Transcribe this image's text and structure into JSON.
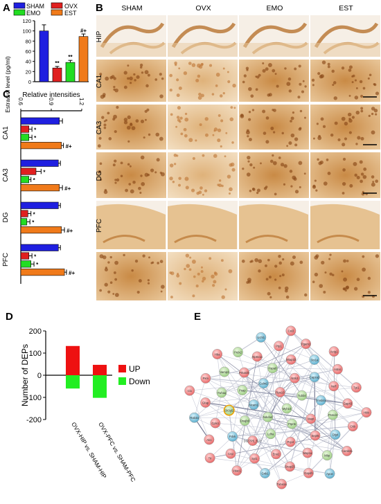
{
  "panel_labels": {
    "A": "A",
    "B": "B",
    "C": "C",
    "D": "D",
    "E": "E"
  },
  "colors": {
    "SHAM": "#1f1fe0",
    "OVX": "#e02020",
    "EMO": "#22dd22",
    "EST": "#f07a1a",
    "UP": "#ee1111",
    "Down": "#22ee22"
  },
  "legend_a": [
    {
      "label": "SHAM",
      "color": "#1f1fe0"
    },
    {
      "label": "OVX",
      "color": "#e02020"
    },
    {
      "label": "EMO",
      "color": "#22dd22"
    },
    {
      "label": "EST",
      "color": "#f07a1a"
    }
  ],
  "panel_b": {
    "columns": [
      "SHAM",
      "OVX",
      "EMO",
      "EST"
    ],
    "rows": [
      "HIP",
      "CA1",
      "CA3",
      "DG",
      "PFC",
      ""
    ]
  },
  "chart_data": [
    {
      "type": "bar",
      "panel": "A",
      "ylabel": "Estradiol level (pg/ml)",
      "ylim": [
        0,
        120
      ],
      "yticks": [
        "0",
        "20",
        "40",
        "60",
        "80",
        "100",
        "120"
      ],
      "categories": [
        "SHAM",
        "OVX",
        "EMO",
        "EST"
      ],
      "values": [
        100,
        27,
        38,
        89
      ],
      "errors": [
        12,
        3,
        4,
        5
      ],
      "annotations": [
        "",
        "**",
        "**",
        "#+"
      ]
    },
    {
      "type": "bar",
      "panel": "C",
      "orientation": "horizontal",
      "title": "Relative intensities",
      "xlim": [
        0.6,
        1.2
      ],
      "xticks": [
        "0.6",
        "0.9",
        "1.2"
      ],
      "groups": [
        {
          "name": "CA1",
          "values": [
            0.98,
            0.68,
            0.68,
            1.0
          ],
          "errors": [
            0.03,
            0.03,
            0.03,
            0.02
          ],
          "annotations": [
            "",
            "*",
            "*",
            "#+"
          ]
        },
        {
          "name": "CA3",
          "values": [
            0.97,
            0.75,
            0.68,
            0.98
          ],
          "errors": [
            0.02,
            0.05,
            0.02,
            0.03
          ],
          "annotations": [
            "",
            "*",
            "*",
            "#+"
          ]
        },
        {
          "name": "DG",
          "values": [
            0.97,
            0.67,
            0.66,
            1.0
          ],
          "errors": [
            0.02,
            0.03,
            0.03,
            0.03
          ],
          "annotations": [
            "",
            "*",
            "*",
            "#+"
          ]
        },
        {
          "name": "PFC",
          "values": [
            0.97,
            0.68,
            0.7,
            1.03
          ],
          "errors": [
            0.02,
            0.03,
            0.03,
            0.02
          ],
          "annotations": [
            "",
            "*",
            "*",
            "#+"
          ]
        }
      ]
    },
    {
      "type": "bar",
      "panel": "D",
      "ylabel": "Number of DEPs",
      "ylim": [
        -200,
        200
      ],
      "yticks": [
        "-200",
        "-100",
        "0",
        "100",
        "200"
      ],
      "categories": [
        "OVX-HIP vs. SHAM-HIP",
        "OVX-PFC vs. SHAM-PFC"
      ],
      "series": [
        {
          "name": "UP",
          "values": [
            132,
            47
          ]
        },
        {
          "name": "Down",
          "values": [
            -60,
            -102
          ]
        }
      ]
    }
  ],
  "network": {
    "labels": [
      "Myh10",
      "Ndufa4",
      "Rps10",
      "Ptpn5",
      "Ncam1",
      "Tubb4",
      "Ldha",
      "Calm2",
      "Mapt",
      "Dnajb6",
      "Ntrk3",
      "Pcp4",
      "Psap",
      "Tmsb4x",
      "D3Z7P5_RAT",
      "Hspa8",
      "Sept5",
      "Sh3gl2",
      "Capza2",
      "Eno2",
      "Prkar2b",
      "Psmd4",
      "Pdxk",
      "Mtap1b",
      "Map1a",
      "Ywhaq",
      "Nefl",
      "Syt1",
      "Atp6v1a",
      "Dlg4",
      "Cplx1",
      "Stx1a",
      "Snap25",
      "Vamp2",
      "Gap43",
      "Cnp",
      "Plp1",
      "Mbp",
      "Gfap",
      "Aldoc",
      "Gnb1",
      "Prdx2",
      "Ckb",
      "Ak1",
      "Pgam1",
      "Gapdh",
      "Pkm",
      "Tpi1",
      "Vdac1",
      "Uchl1",
      "Camk2a",
      "Rab3a",
      "Actg1",
      "Tuba1a",
      "Hba",
      "Hbb",
      "Ttr",
      "Cst3",
      "Apoe",
      "Clu"
    ]
  }
}
